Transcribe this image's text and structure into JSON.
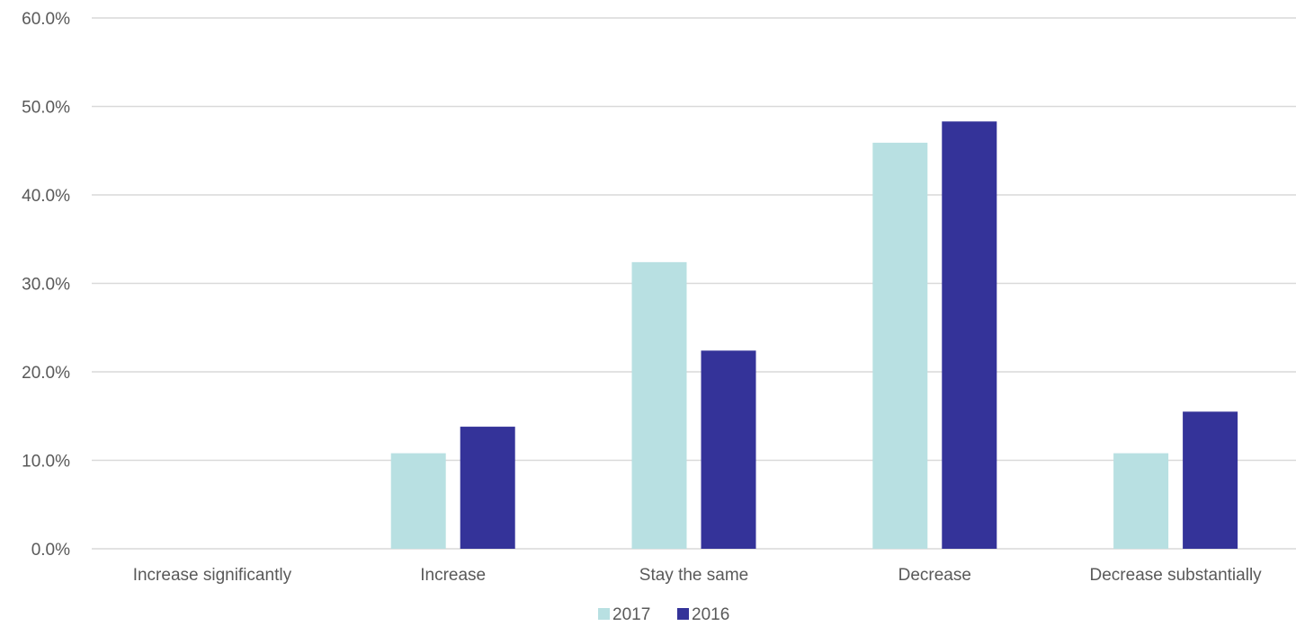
{
  "chart_data": {
    "type": "bar",
    "categories": [
      "Increase significantly",
      "Increase",
      "Stay the same",
      "Decrease",
      "Decrease substantially"
    ],
    "series": [
      {
        "name": "2017",
        "color": "#b8e0e2",
        "values": [
          0.0,
          10.8,
          32.4,
          45.9,
          10.8
        ]
      },
      {
        "name": "2016",
        "color": "#343399",
        "values": [
          0.0,
          13.8,
          22.4,
          48.3,
          15.5
        ]
      }
    ],
    "ylim": [
      0,
      60
    ],
    "yticks": [
      "0.0%",
      "10.0%",
      "20.0%",
      "30.0%",
      "40.0%",
      "50.0%",
      "60.0%"
    ],
    "ytick_values": [
      0,
      10,
      20,
      30,
      40,
      50,
      60
    ],
    "grid": true,
    "legend_position": "bottom",
    "gridline_color": "#d9d9d9"
  }
}
